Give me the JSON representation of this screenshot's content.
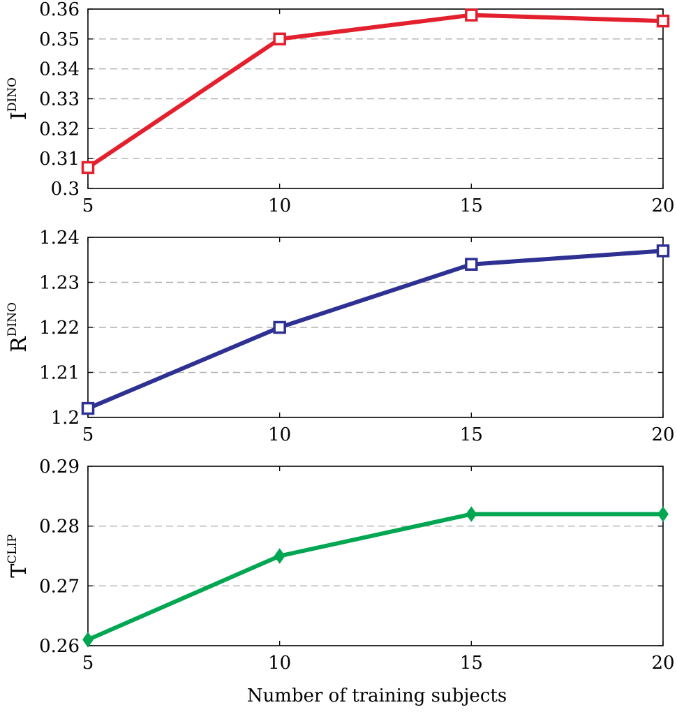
{
  "chart_data": [
    {
      "type": "line",
      "x": [
        5,
        10,
        15,
        20
      ],
      "xticks": [
        "5",
        "10",
        "15",
        "20"
      ],
      "xlim": [
        5,
        20
      ],
      "ylim": [
        0.3,
        0.36
      ],
      "yticks": [
        "0.3",
        "0.31",
        "0.32",
        "0.33",
        "0.34",
        "0.35",
        "0.36"
      ],
      "ylabel_main": "I",
      "ylabel_sup": "DINO",
      "grid": "horizontal dashed",
      "series": [
        {
          "values": [
            0.307,
            0.35,
            0.358,
            0.356
          ],
          "color": "#e3202e",
          "marker": "square"
        }
      ]
    },
    {
      "type": "line",
      "x": [
        5,
        10,
        15,
        20
      ],
      "xticks": [
        "5",
        "10",
        "15",
        "20"
      ],
      "xlim": [
        5,
        20
      ],
      "ylim": [
        1.2,
        1.24
      ],
      "yticks": [
        "1.2",
        "1.21",
        "1.22",
        "1.23",
        "1.24"
      ],
      "ylabel_main": "R",
      "ylabel_sup": "DINO",
      "grid": "horizontal dashed",
      "series": [
        {
          "values": [
            1.202,
            1.22,
            1.234,
            1.237
          ],
          "color": "#2e3192",
          "marker": "square"
        }
      ]
    },
    {
      "type": "line",
      "x": [
        5,
        10,
        15,
        20
      ],
      "xticks": [
        "5",
        "10",
        "15",
        "20"
      ],
      "xlim": [
        5,
        20
      ],
      "ylim": [
        0.26,
        0.29
      ],
      "yticks": [
        "0.26",
        "0.27",
        "0.28",
        "0.29"
      ],
      "ylabel_main": "T",
      "ylabel_sup": "CLIP",
      "grid": "horizontal dashed",
      "series": [
        {
          "values": [
            0.261,
            0.275,
            0.282,
            0.282
          ],
          "color": "#00a651",
          "marker": "diamond"
        }
      ]
    }
  ],
  "xlabel": "Number of training subjects"
}
